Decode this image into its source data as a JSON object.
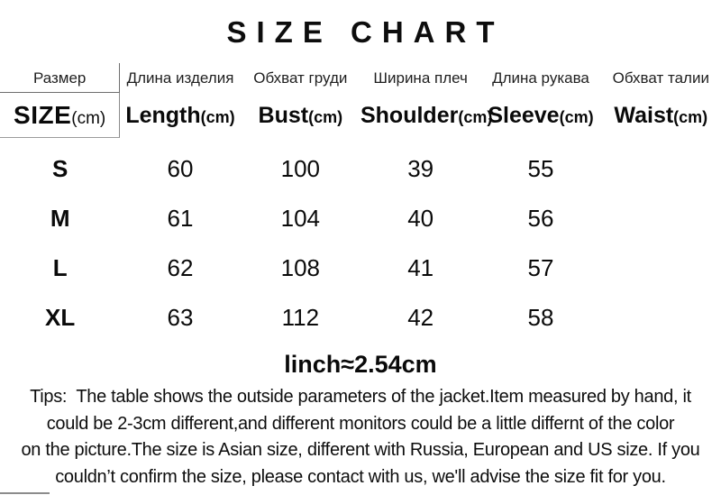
{
  "title": "SIZE CHART",
  "table": {
    "columns": [
      {
        "ru": "Размер",
        "en": "SIZE",
        "unit": "(cm)"
      },
      {
        "ru": "Длина изделия",
        "en": "Length",
        "unit": "(cm)"
      },
      {
        "ru": "Обхват груди",
        "en": "Bust",
        "unit": "(cm)"
      },
      {
        "ru": "Ширина плеч",
        "en": "Shoulder",
        "unit": "(cm)"
      },
      {
        "ru": "Длина рукава",
        "en": "Sleeve",
        "unit": "(cm)"
      },
      {
        "ru": "Обхват талии",
        "en": "Waist",
        "unit": "(cm)"
      }
    ],
    "rows": [
      {
        "cells": [
          "S",
          "60",
          "100",
          "39",
          "55",
          ""
        ]
      },
      {
        "cells": [
          "M",
          "61",
          "104",
          "40",
          "56",
          ""
        ]
      },
      {
        "cells": [
          "L",
          "62",
          "108",
          "41",
          "57",
          ""
        ]
      },
      {
        "cells": [
          "XL",
          "63",
          "112",
          "42",
          "58",
          ""
        ]
      }
    ]
  },
  "conversion_note": "linch≈2.54cm",
  "tips": {
    "lines": [
      "Tips:  The table shows the outside parameters of the jacket.Item measured by hand, it",
      "could be 2-3cm different,and different monitors could be a little differnt of the color",
      "on the picture.The size is Asian size, different with Russia, European and US size. If you",
      "couldn’t confirm the size, please contact with us, we'll advise the size fit for you."
    ]
  },
  "chart_data": {
    "type": "table",
    "title": "SIZE CHART",
    "columns": [
      "SIZE(cm)",
      "Length(cm)",
      "Bust(cm)",
      "Shoulder(cm)",
      "Sleeve(cm)",
      "Waist(cm)"
    ],
    "rows": [
      [
        "S",
        60,
        100,
        39,
        55,
        null
      ],
      [
        "M",
        61,
        104,
        40,
        56,
        null
      ],
      [
        "L",
        62,
        108,
        41,
        57,
        null
      ],
      [
        "XL",
        63,
        112,
        42,
        58,
        null
      ]
    ]
  },
  "colors": {
    "background": "#ffffff",
    "text": "#000000",
    "table_border": "#808080"
  }
}
